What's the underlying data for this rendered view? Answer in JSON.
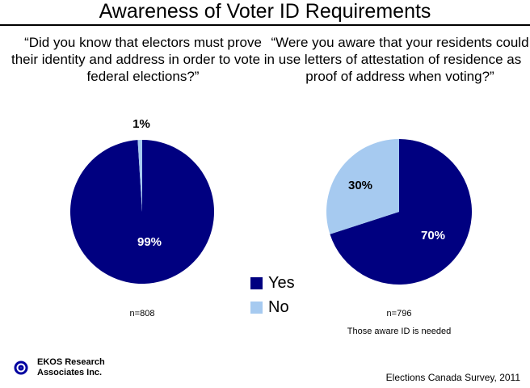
{
  "chart_data": [
    {
      "type": "pie",
      "question": "“Did you know that electors must prove their identity and address in order to vote in federal elections?”",
      "slices": [
        {
          "label": "Yes",
          "value": 99,
          "data_label": "99%"
        },
        {
          "label": "No",
          "value": 1,
          "data_label": "1%"
        }
      ],
      "n_label": "n=808"
    },
    {
      "type": "pie",
      "question": "“Were you aware that your residents could use letters of attestation of residence as proof of address when voting?”",
      "slices": [
        {
          "label": "Yes",
          "value": 70,
          "data_label": "70%"
        },
        {
          "label": "No",
          "value": 30,
          "data_label": "30%"
        }
      ],
      "n_label": "n=796",
      "note": "Those aware ID is needed"
    }
  ],
  "title": "Awareness of Voter ID Requirements",
  "legend": [
    {
      "label": "Yes",
      "color": "#000080"
    },
    {
      "label": "No",
      "color": "#A6CAF0"
    }
  ],
  "logo": {
    "line1": "EKOS Research",
    "line2": "Associates Inc."
  },
  "source": "Elections Canada Survey, 2011"
}
